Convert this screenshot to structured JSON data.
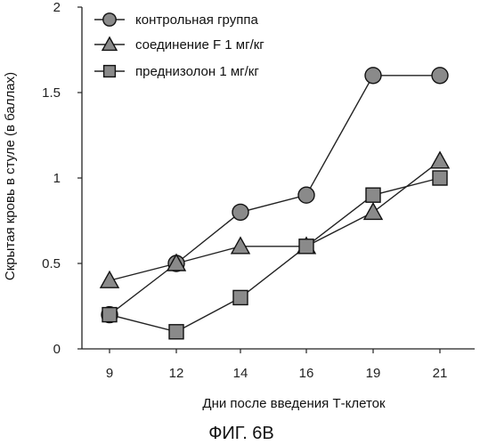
{
  "chart_data": {
    "type": "line",
    "x": [
      9,
      12,
      14,
      16,
      19,
      21
    ],
    "series": [
      {
        "name": "контрольная группа",
        "marker": "circle",
        "values": [
          0.2,
          0.5,
          0.8,
          0.9,
          1.6,
          1.6
        ]
      },
      {
        "name": "соединение F 1 мг/кг",
        "marker": "triangle",
        "values": [
          0.4,
          0.5,
          0.6,
          0.6,
          0.8,
          1.1
        ]
      },
      {
        "name": "преднизолон 1 мг/кг",
        "marker": "square",
        "values": [
          0.2,
          0.1,
          0.3,
          0.6,
          0.9,
          1.0
        ]
      }
    ],
    "xlabel": "Дни после введения Т-клеток",
    "ylabel": "Скрытая кровь в стуле (в баллах)",
    "ylim": [
      0,
      2
    ],
    "yticks": [
      "0",
      "0.5",
      "1",
      "1.5",
      "2"
    ],
    "xticks": [
      "9",
      "12",
      "14",
      "16",
      "19",
      "21"
    ],
    "grid": false,
    "legend_position": "top-left",
    "colors": {
      "line": "#222222",
      "marker_fill": "#8a8a8a",
      "marker_stroke": "#111111"
    }
  },
  "caption": "ФИГ. 6В"
}
